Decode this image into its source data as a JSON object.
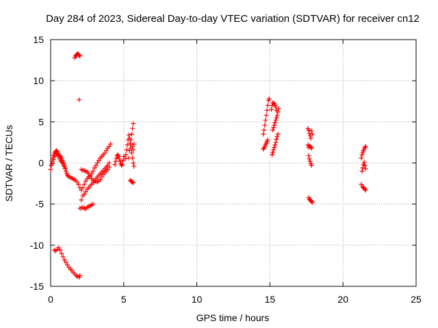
{
  "chart_data": {
    "type": "scatter",
    "title": "Day 284 of 2023, Sidereal Day-to-day VTEC variation (SDTVAR) for receiver cn12",
    "xlabel": "GPS time / hours",
    "ylabel": "SDTVAR / TECUs",
    "xlim": [
      0,
      25
    ],
    "ylim": [
      -15,
      15
    ],
    "xticks": [
      "0",
      "5",
      "10",
      "15",
      "20",
      "25"
    ],
    "yticks": [
      "-15",
      "-10",
      "-5",
      "0",
      "5",
      "10",
      "15"
    ],
    "grid": true,
    "marker": "+",
    "series_color": "#ff0000",
    "segments": [
      {
        "name": "arc-a",
        "points": [
          [
            0.0,
            -0.8
          ],
          [
            0.05,
            -0.3
          ],
          [
            0.1,
            0.2
          ],
          [
            0.15,
            0.6
          ],
          [
            0.2,
            0.9
          ],
          [
            0.25,
            1.1
          ],
          [
            0.3,
            1.3
          ],
          [
            0.35,
            1.4
          ],
          [
            0.4,
            1.5
          ],
          [
            0.45,
            1.4
          ],
          [
            0.5,
            1.2
          ],
          [
            0.55,
            1.0
          ],
          [
            0.6,
            0.9
          ],
          [
            0.65,
            0.8
          ],
          [
            0.7,
            0.7
          ],
          [
            0.75,
            0.5
          ],
          [
            0.8,
            0.3
          ],
          [
            0.85,
            0.1
          ],
          [
            0.9,
            -0.1
          ],
          [
            0.95,
            -0.4
          ],
          [
            1.0,
            -0.7
          ],
          [
            1.05,
            -1.0
          ],
          [
            1.1,
            -1.3
          ],
          [
            1.15,
            -1.5
          ],
          [
            1.2,
            -1.6
          ],
          [
            1.3,
            -1.7
          ],
          [
            1.4,
            -1.8
          ],
          [
            1.5,
            -1.9
          ],
          [
            1.6,
            -2.0
          ],
          [
            1.7,
            -2.1
          ],
          [
            1.8,
            -2.3
          ],
          [
            1.9,
            -2.6
          ],
          [
            2.0,
            -3.0
          ],
          [
            2.1,
            -3.3
          ],
          [
            2.2,
            -3.0
          ],
          [
            2.3,
            -2.6
          ],
          [
            2.4,
            -2.2
          ],
          [
            2.5,
            -1.9
          ],
          [
            2.6,
            -1.7
          ],
          [
            2.7,
            -1.5
          ],
          [
            2.8,
            -1.3
          ],
          [
            2.9,
            -1.0
          ],
          [
            3.0,
            -0.6
          ],
          [
            3.1,
            -0.3
          ],
          [
            3.2,
            0.0
          ],
          [
            3.3,
            0.3
          ],
          [
            3.4,
            0.6
          ],
          [
            3.5,
            0.8
          ],
          [
            3.6,
            1.0
          ],
          [
            3.7,
            1.2
          ],
          [
            3.8,
            1.5
          ],
          [
            3.9,
            1.8
          ],
          [
            4.0,
            2.0
          ],
          [
            4.1,
            2.3
          ]
        ]
      },
      {
        "name": "arc-b",
        "points": [
          [
            0.1,
            -0.1
          ],
          [
            0.2,
            0.4
          ],
          [
            0.3,
            0.8
          ],
          [
            0.4,
            1.1
          ],
          [
            0.5,
            0.9
          ],
          [
            0.6,
            0.5
          ],
          [
            0.7,
            0.2
          ],
          [
            0.8,
            0.0
          ],
          [
            0.9,
            -0.3
          ],
          [
            1.0,
            -0.6
          ]
        ]
      },
      {
        "name": "arc-c",
        "points": [
          [
            2.1,
            -4.5
          ],
          [
            2.2,
            -4.0
          ],
          [
            2.3,
            -3.8
          ],
          [
            2.4,
            -3.5
          ],
          [
            2.5,
            -3.2
          ],
          [
            2.6,
            -3.0
          ],
          [
            2.7,
            -2.8
          ],
          [
            2.8,
            -2.6
          ],
          [
            2.9,
            -2.4
          ],
          [
            3.0,
            -2.2
          ],
          [
            3.1,
            -1.9
          ],
          [
            3.2,
            -1.7
          ],
          [
            3.3,
            -1.5
          ],
          [
            3.4,
            -1.3
          ],
          [
            3.5,
            -1.1
          ],
          [
            3.6,
            -0.9
          ],
          [
            3.7,
            -0.7
          ],
          [
            3.8,
            -0.5
          ],
          [
            3.9,
            -0.3
          ],
          [
            4.0,
            0.0
          ]
        ]
      },
      {
        "name": "arc-d",
        "points": [
          [
            2.1,
            -0.8
          ],
          [
            2.2,
            -0.9
          ],
          [
            2.3,
            -0.9
          ],
          [
            2.4,
            -1.0
          ],
          [
            2.5,
            -1.1
          ],
          [
            2.6,
            -1.3
          ],
          [
            2.7,
            -1.6
          ],
          [
            2.8,
            -1.9
          ],
          [
            2.9,
            -2.1
          ],
          [
            3.0,
            -2.2
          ],
          [
            3.1,
            -2.3
          ],
          [
            3.2,
            -2.3
          ],
          [
            3.3,
            -2.2
          ],
          [
            3.4,
            -2.0
          ],
          [
            3.5,
            -1.7
          ],
          [
            3.6,
            -1.4
          ],
          [
            3.7,
            -1.2
          ],
          [
            3.8,
            -1.0
          ],
          [
            3.9,
            -0.8
          ],
          [
            4.0,
            -0.5
          ]
        ]
      },
      {
        "name": "arc-e",
        "points": [
          [
            2.0,
            -5.5
          ],
          [
            2.1,
            -5.5
          ],
          [
            2.2,
            -5.4
          ],
          [
            2.3,
            -5.5
          ],
          [
            2.4,
            -5.6
          ],
          [
            2.5,
            -5.4
          ],
          [
            2.6,
            -5.3
          ],
          [
            2.7,
            -5.2
          ],
          [
            2.8,
            -5.1
          ],
          [
            2.9,
            -5.0
          ]
        ]
      },
      {
        "name": "arc-f",
        "points": [
          [
            0.25,
            -10.6
          ],
          [
            0.35,
            -10.7
          ],
          [
            0.45,
            -10.5
          ],
          [
            0.55,
            -10.3
          ],
          [
            0.65,
            -10.6
          ],
          [
            0.75,
            -11.0
          ],
          [
            0.85,
            -11.4
          ],
          [
            0.95,
            -11.8
          ],
          [
            1.05,
            -12.1
          ],
          [
            1.15,
            -12.4
          ],
          [
            1.25,
            -12.7
          ],
          [
            1.35,
            -12.9
          ],
          [
            1.45,
            -13.1
          ],
          [
            1.55,
            -13.3
          ],
          [
            1.65,
            -13.5
          ],
          [
            1.75,
            -13.7
          ],
          [
            1.85,
            -13.8
          ],
          [
            1.95,
            -13.9
          ],
          [
            2.0,
            -13.7
          ]
        ]
      },
      {
        "name": "arc-g",
        "points": [
          [
            1.65,
            12.8
          ],
          [
            1.7,
            13.0
          ],
          [
            1.75,
            13.1
          ],
          [
            1.8,
            13.2
          ],
          [
            1.85,
            13.3
          ],
          [
            1.9,
            13.2
          ],
          [
            1.95,
            13.1
          ],
          [
            2.0,
            13.0
          ]
        ]
      },
      {
        "name": "point-h",
        "points": [
          [
            1.95,
            7.7
          ]
        ]
      },
      {
        "name": "arc-i",
        "points": [
          [
            4.4,
            -0.2
          ],
          [
            4.45,
            0.2
          ],
          [
            4.5,
            0.6
          ],
          [
            4.55,
            0.9
          ],
          [
            4.6,
            1.0
          ],
          [
            4.65,
            0.8
          ],
          [
            4.7,
            0.5
          ],
          [
            4.75,
            0.2
          ],
          [
            4.8,
            -0.1
          ],
          [
            4.85,
            -0.3
          ],
          [
            4.9,
            -0.2
          ],
          [
            4.95,
            0.3
          ],
          [
            5.0,
            0.8
          ]
        ]
      },
      {
        "name": "arc-j",
        "points": [
          [
            5.1,
            0.5
          ],
          [
            5.15,
            1.0
          ],
          [
            5.2,
            1.6
          ],
          [
            5.25,
            2.2
          ],
          [
            5.3,
            2.8
          ],
          [
            5.35,
            3.4
          ],
          [
            5.4,
            3.0
          ],
          [
            5.45,
            2.4
          ],
          [
            5.5,
            1.8
          ],
          [
            5.55,
            1.2
          ],
          [
            5.6,
            0.6
          ],
          [
            5.65,
            0.0
          ],
          [
            5.7,
            -0.4
          ]
        ]
      },
      {
        "name": "arc-k",
        "points": [
          [
            5.35,
            0.6
          ],
          [
            5.4,
            1.5
          ],
          [
            5.45,
            2.2
          ],
          [
            5.5,
            2.8
          ],
          [
            5.55,
            3.5
          ],
          [
            5.6,
            4.2
          ],
          [
            5.65,
            4.8
          ],
          [
            5.6,
            2.0
          ],
          [
            5.65,
            1.6
          ],
          [
            5.7,
            2.3
          ]
        ]
      },
      {
        "name": "arc-l",
        "points": [
          [
            5.45,
            -2.1
          ],
          [
            5.5,
            -2.2
          ],
          [
            5.55,
            -2.3
          ],
          [
            5.6,
            -2.3
          ],
          [
            5.65,
            -2.4
          ]
        ]
      },
      {
        "name": "arc-m",
        "points": [
          [
            14.55,
            1.7
          ],
          [
            14.6,
            1.8
          ],
          [
            14.65,
            2.0
          ],
          [
            14.7,
            2.2
          ],
          [
            14.75,
            2.4
          ],
          [
            14.8,
            2.6
          ],
          [
            14.85,
            2.8
          ]
        ]
      },
      {
        "name": "arc-n",
        "points": [
          [
            14.55,
            3.5
          ],
          [
            14.6,
            4.0
          ],
          [
            14.65,
            4.6
          ],
          [
            14.7,
            5.2
          ],
          [
            14.75,
            5.8
          ],
          [
            14.8,
            6.4
          ],
          [
            14.85,
            7.0
          ],
          [
            14.9,
            7.6
          ],
          [
            14.95,
            7.8
          ]
        ]
      },
      {
        "name": "arc-o",
        "points": [
          [
            15.15,
            1.0
          ],
          [
            15.2,
            1.3
          ],
          [
            15.25,
            1.6
          ],
          [
            15.3,
            1.9
          ],
          [
            15.35,
            2.2
          ],
          [
            15.4,
            2.5
          ],
          [
            15.45,
            2.9
          ],
          [
            15.5,
            3.2
          ],
          [
            15.55,
            3.5
          ]
        ]
      },
      {
        "name": "arc-p",
        "points": [
          [
            15.2,
            4.0
          ],
          [
            15.25,
            4.3
          ],
          [
            15.3,
            4.6
          ],
          [
            15.35,
            4.9
          ],
          [
            15.4,
            5.2
          ],
          [
            15.45,
            5.5
          ],
          [
            15.5,
            5.8
          ],
          [
            15.55,
            6.2
          ],
          [
            15.6,
            6.6
          ]
        ]
      },
      {
        "name": "arc-q",
        "points": [
          [
            15.1,
            6.5
          ],
          [
            15.15,
            7.0
          ],
          [
            15.2,
            7.3
          ],
          [
            15.25,
            7.3
          ],
          [
            15.3,
            7.2
          ],
          [
            15.35,
            7.0
          ],
          [
            15.4,
            6.8
          ],
          [
            15.45,
            6.4
          ]
        ]
      },
      {
        "name": "arc-r",
        "points": [
          [
            17.6,
            4.2
          ],
          [
            17.65,
            4.0
          ],
          [
            17.7,
            3.6
          ],
          [
            17.75,
            3.3
          ],
          [
            17.8,
            3.0
          ],
          [
            17.85,
            3.9
          ],
          [
            17.9,
            3.5
          ]
        ]
      },
      {
        "name": "arc-s",
        "points": [
          [
            17.6,
            2.2
          ],
          [
            17.65,
            1.9
          ],
          [
            17.7,
            2.1
          ],
          [
            17.75,
            2.0
          ],
          [
            17.8,
            1.9
          ],
          [
            17.85,
            1.8
          ]
        ]
      },
      {
        "name": "arc-t",
        "points": [
          [
            17.65,
            0.9
          ],
          [
            17.7,
            0.5
          ],
          [
            17.75,
            0.2
          ],
          [
            17.8,
            -0.1
          ],
          [
            17.85,
            -0.3
          ]
        ]
      },
      {
        "name": "arc-u",
        "points": [
          [
            17.65,
            -4.2
          ],
          [
            17.7,
            -4.4
          ],
          [
            17.75,
            -4.5
          ],
          [
            17.8,
            -4.6
          ],
          [
            17.85,
            -4.7
          ],
          [
            17.9,
            -4.8
          ]
        ]
      },
      {
        "name": "arc-v",
        "points": [
          [
            21.25,
            0.6
          ],
          [
            21.3,
            1.0
          ],
          [
            21.35,
            1.3
          ],
          [
            21.4,
            1.5
          ],
          [
            21.45,
            1.7
          ],
          [
            21.5,
            1.9
          ],
          [
            21.55,
            2.0
          ]
        ]
      },
      {
        "name": "arc-w",
        "points": [
          [
            21.3,
            -1.0
          ],
          [
            21.35,
            -0.6
          ],
          [
            21.4,
            -0.2
          ],
          [
            21.45,
            0.1
          ],
          [
            21.5,
            -0.3
          ],
          [
            21.55,
            -0.7
          ]
        ]
      },
      {
        "name": "arc-x",
        "points": [
          [
            21.25,
            -2.6
          ],
          [
            21.35,
            -2.9
          ],
          [
            21.4,
            -3.0
          ],
          [
            21.45,
            -3.1
          ],
          [
            21.5,
            -3.2
          ],
          [
            21.55,
            -3.3
          ]
        ]
      }
    ]
  }
}
